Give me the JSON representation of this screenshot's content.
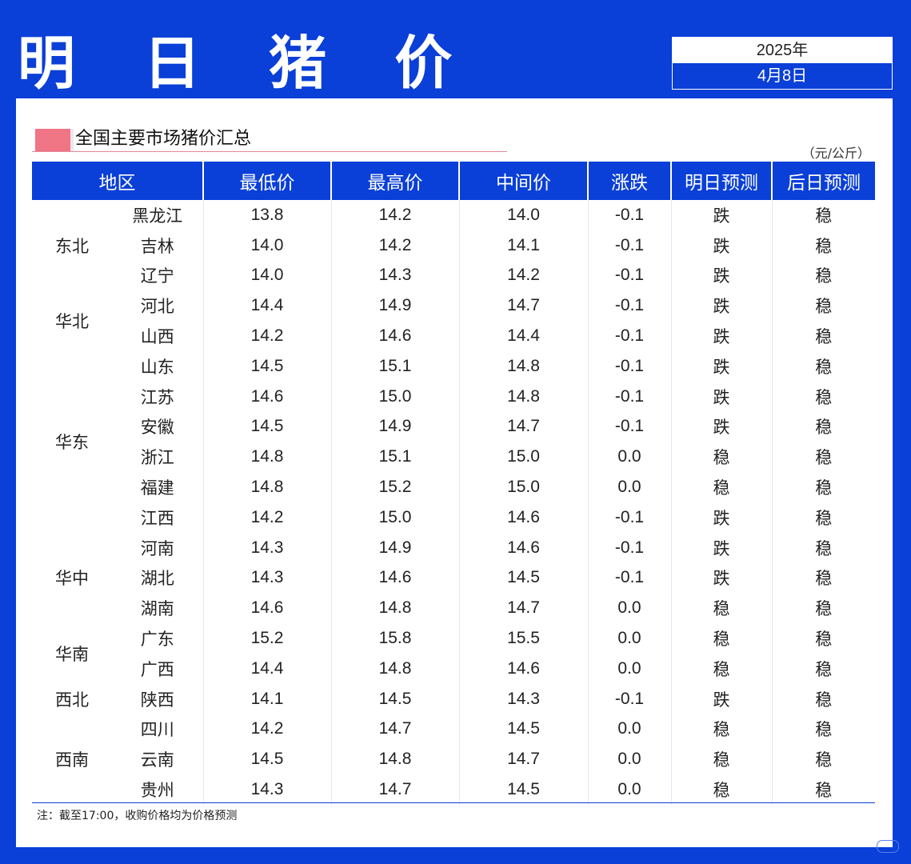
{
  "header": {
    "title": "明 日 猪 价",
    "year": "2025年",
    "date": "4月8日"
  },
  "section": {
    "title": "全国主要市场猪价汇总",
    "unit": "（元/公斤）"
  },
  "table": {
    "columns": [
      "地区",
      "最低价",
      "最高价",
      "中间价",
      "涨跌",
      "明日预测",
      "后日预测"
    ],
    "regions": [
      {
        "name": "东北",
        "rows": [
          {
            "province": "黑龙江",
            "min": "13.8",
            "max": "14.2",
            "mid": "14.0",
            "change": "-0.1",
            "tomorrow": "跌",
            "after": "稳"
          },
          {
            "province": "吉林",
            "min": "14.0",
            "max": "14.2",
            "mid": "14.1",
            "change": "-0.1",
            "tomorrow": "跌",
            "after": "稳"
          },
          {
            "province": "辽宁",
            "min": "14.0",
            "max": "14.3",
            "mid": "14.2",
            "change": "-0.1",
            "tomorrow": "跌",
            "after": "稳"
          }
        ]
      },
      {
        "name": "华北",
        "rows": [
          {
            "province": "河北",
            "min": "14.4",
            "max": "14.9",
            "mid": "14.7",
            "change": "-0.1",
            "tomorrow": "跌",
            "after": "稳"
          },
          {
            "province": "山西",
            "min": "14.2",
            "max": "14.6",
            "mid": "14.4",
            "change": "-0.1",
            "tomorrow": "跌",
            "after": "稳"
          }
        ]
      },
      {
        "name": "华东",
        "rows": [
          {
            "province": "山东",
            "min": "14.5",
            "max": "15.1",
            "mid": "14.8",
            "change": "-0.1",
            "tomorrow": "跌",
            "after": "稳"
          },
          {
            "province": "江苏",
            "min": "14.6",
            "max": "15.0",
            "mid": "14.8",
            "change": "-0.1",
            "tomorrow": "跌",
            "after": "稳"
          },
          {
            "province": "安徽",
            "min": "14.5",
            "max": "14.9",
            "mid": "14.7",
            "change": "-0.1",
            "tomorrow": "跌",
            "after": "稳"
          },
          {
            "province": "浙江",
            "min": "14.8",
            "max": "15.1",
            "mid": "15.0",
            "change": "0.0",
            "tomorrow": "稳",
            "after": "稳"
          },
          {
            "province": "福建",
            "min": "14.8",
            "max": "15.2",
            "mid": "15.0",
            "change": "0.0",
            "tomorrow": "稳",
            "after": "稳"
          },
          {
            "province": "江西",
            "min": "14.2",
            "max": "15.0",
            "mid": "14.6",
            "change": "-0.1",
            "tomorrow": "跌",
            "after": "稳"
          }
        ]
      },
      {
        "name": "华中",
        "rows": [
          {
            "province": "河南",
            "min": "14.3",
            "max": "14.9",
            "mid": "14.6",
            "change": "-0.1",
            "tomorrow": "跌",
            "after": "稳"
          },
          {
            "province": "湖北",
            "min": "14.3",
            "max": "14.6",
            "mid": "14.5",
            "change": "-0.1",
            "tomorrow": "跌",
            "after": "稳"
          },
          {
            "province": "湖南",
            "min": "14.6",
            "max": "14.8",
            "mid": "14.7",
            "change": "0.0",
            "tomorrow": "稳",
            "after": "稳"
          }
        ]
      },
      {
        "name": "华南",
        "rows": [
          {
            "province": "广东",
            "min": "15.2",
            "max": "15.8",
            "mid": "15.5",
            "change": "0.0",
            "tomorrow": "稳",
            "after": "稳"
          },
          {
            "province": "广西",
            "min": "14.4",
            "max": "14.8",
            "mid": "14.6",
            "change": "0.0",
            "tomorrow": "稳",
            "after": "稳"
          }
        ]
      },
      {
        "name": "西北",
        "rows": [
          {
            "province": "陕西",
            "min": "14.1",
            "max": "14.5",
            "mid": "14.3",
            "change": "-0.1",
            "tomorrow": "跌",
            "after": "稳"
          }
        ]
      },
      {
        "name": "西南",
        "rows": [
          {
            "province": "四川",
            "min": "14.2",
            "max": "14.7",
            "mid": "14.5",
            "change": "0.0",
            "tomorrow": "稳",
            "after": "稳"
          },
          {
            "province": "云南",
            "min": "14.5",
            "max": "14.8",
            "mid": "14.7",
            "change": "0.0",
            "tomorrow": "稳",
            "after": "稳"
          },
          {
            "province": "贵州",
            "min": "14.3",
            "max": "14.7",
            "mid": "14.5",
            "change": "0.0",
            "tomorrow": "稳",
            "after": "稳"
          }
        ]
      }
    ]
  },
  "note": "注：截至17:00，收购价格均为价格预测",
  "colors": {
    "brand_blue": "#0a3fd8",
    "down_green": "#1cb35a",
    "accent_pink": "#f07585"
  }
}
